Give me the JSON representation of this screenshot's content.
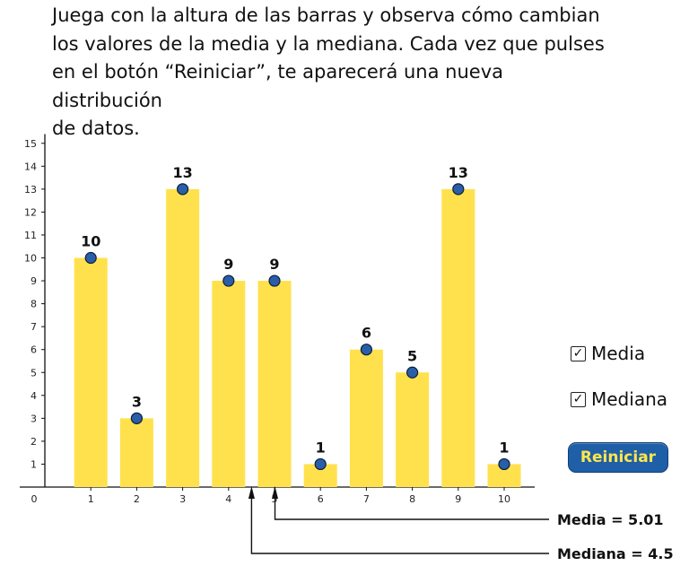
{
  "instructions": {
    "lines": [
      "Juega con la altura de las barras y observa cómo cambian",
      "los valores de la media y la mediana. Cada vez que pulses",
      "en el botón “Reiniciar”, te aparecerá una nueva distribución",
      "de datos."
    ]
  },
  "controls": {
    "media_checkbox": {
      "label": "Media",
      "checked": true
    },
    "mediana_checkbox": {
      "label": "Mediana",
      "checked": true
    },
    "reset_label": "Reiniciar"
  },
  "results": {
    "media_label": "Media = 5.01",
    "mediana_label": "Mediana = 4.5",
    "media_value": 5.01,
    "mediana_value": 4.5
  },
  "colors": {
    "bar": "#ffe14d",
    "handle": "#2a5ea8",
    "button": "#1f5fa8",
    "button_text": "#ffe64d"
  },
  "chart_data": {
    "type": "bar",
    "categories": [
      "1",
      "2",
      "3",
      "4",
      "5",
      "6",
      "7",
      "8",
      "9",
      "10"
    ],
    "values": [
      10,
      3,
      13,
      9,
      9,
      1,
      6,
      5,
      13,
      1
    ],
    "data_labels": [
      "10",
      "3",
      "13",
      "9",
      "9",
      "1",
      "6",
      "5",
      "13",
      "1"
    ],
    "x_tick_labels": [
      "0",
      "1",
      "2",
      "3",
      "4",
      "5",
      "6",
      "7",
      "8",
      "9",
      "10"
    ],
    "y_tick_labels": [
      "1",
      "2",
      "3",
      "4",
      "5",
      "6",
      "7",
      "8",
      "9",
      "10",
      "11",
      "12",
      "13",
      "14",
      "15"
    ],
    "ylim": [
      0,
      15
    ],
    "xlim": [
      0,
      10
    ],
    "grid": false,
    "title": "",
    "xlabel": "",
    "ylabel": ""
  }
}
